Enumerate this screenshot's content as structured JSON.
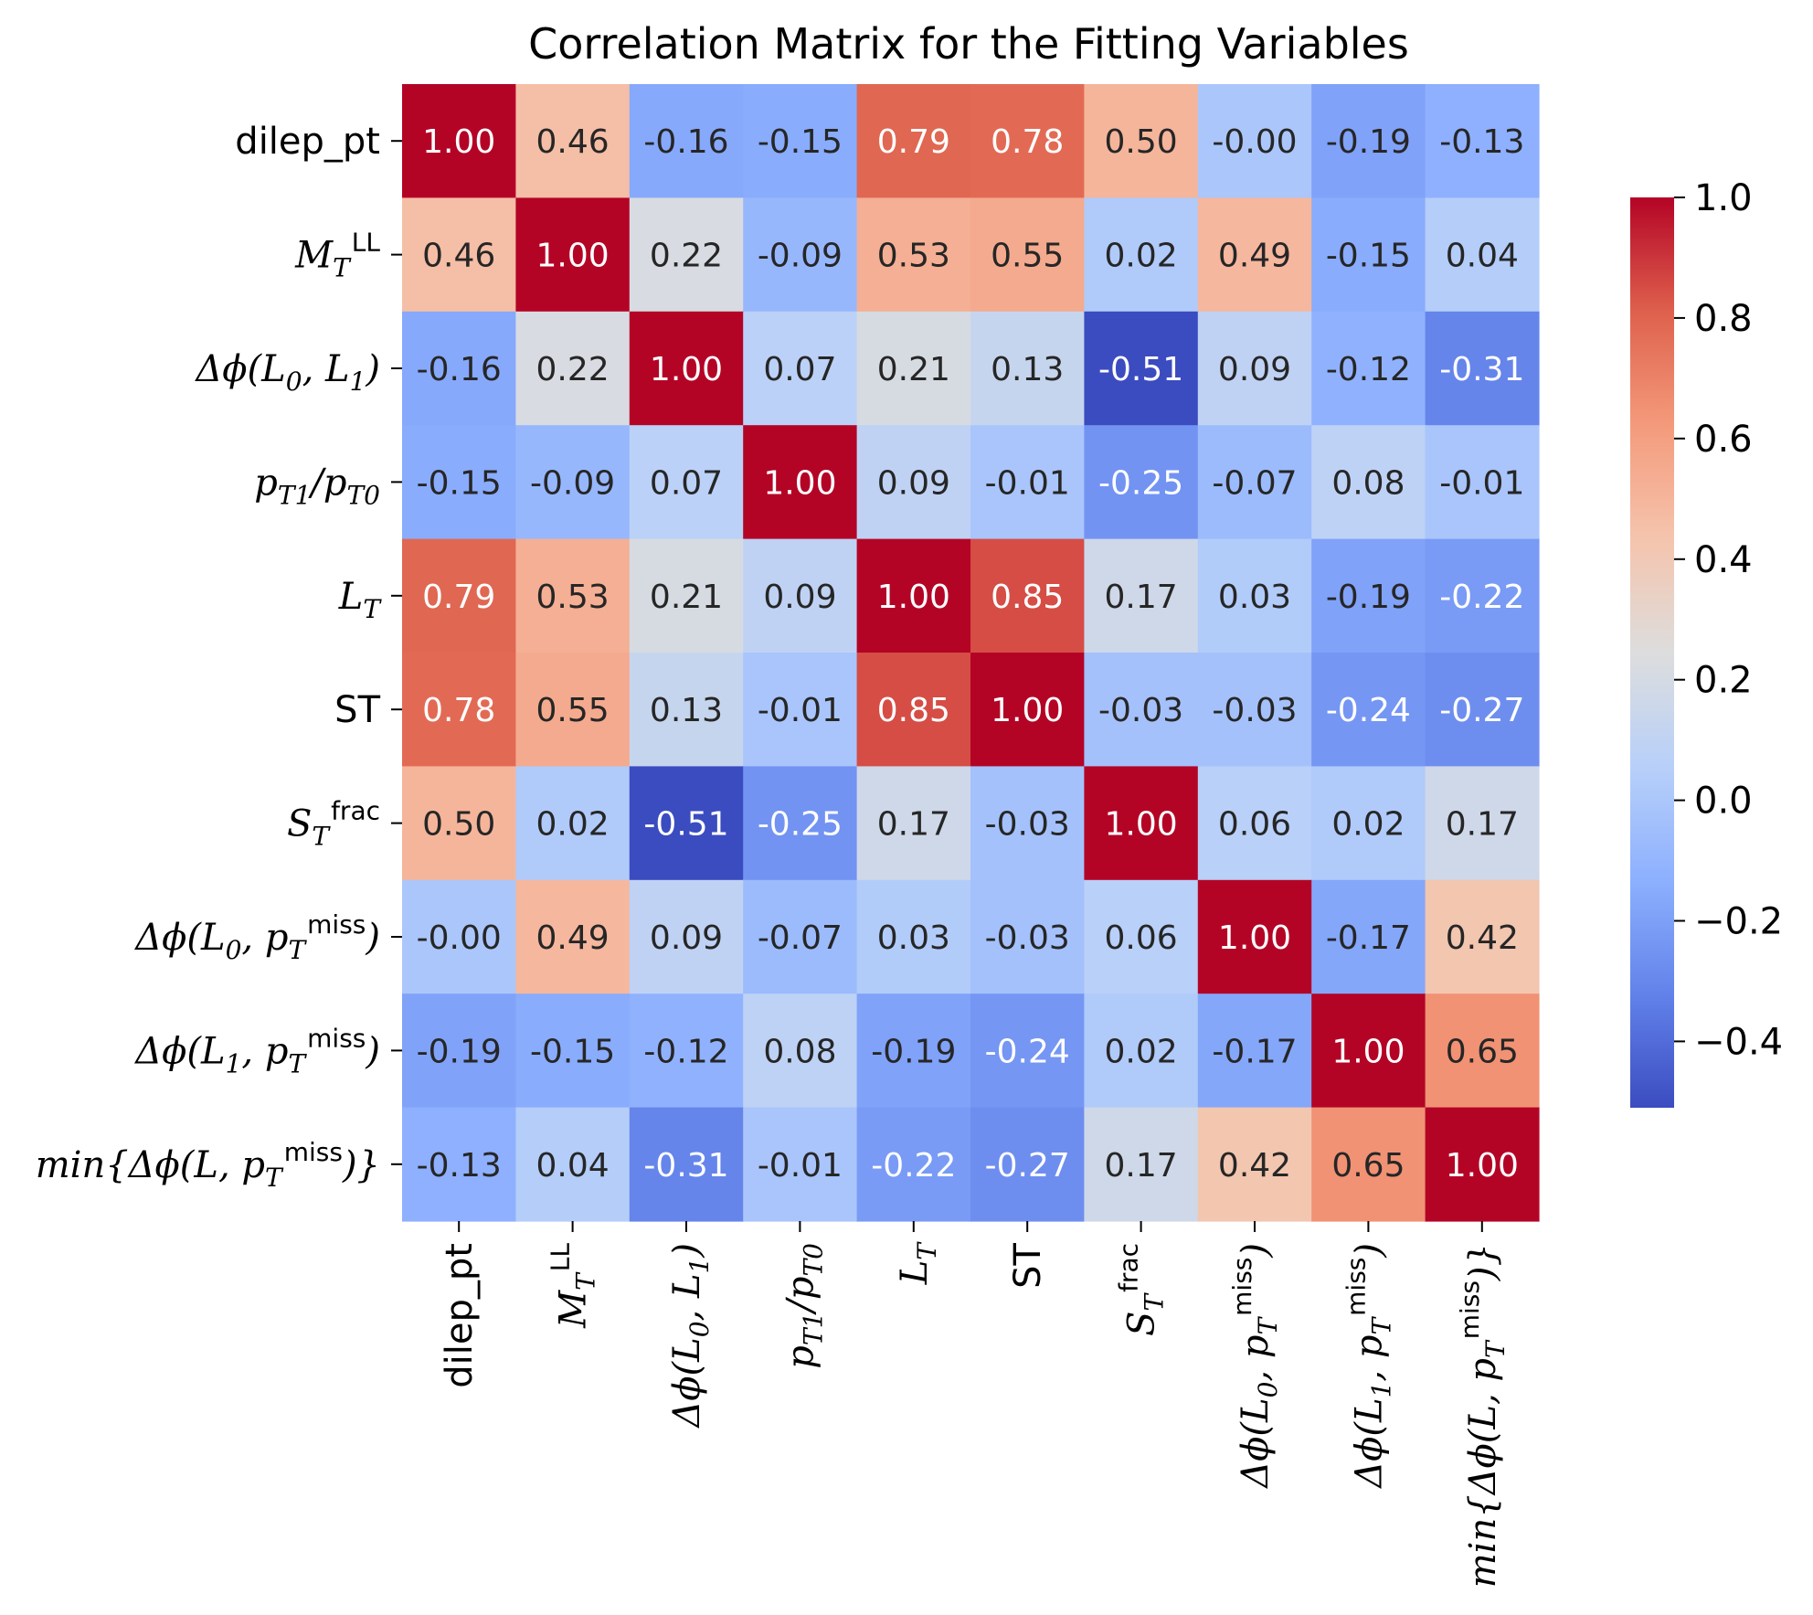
{
  "chart_data": {
    "type": "heatmap",
    "title": "Correlation Matrix for the Fitting Variables",
    "colormap": "coolwarm",
    "vmin": -0.51,
    "vmax": 1.0,
    "colorbar_ticks": [
      "1.0",
      "0.8",
      "0.6",
      "0.4",
      "0.2",
      "0.0",
      "−0.2",
      "−0.4"
    ],
    "colorbar_tick_values": [
      1.0,
      0.8,
      0.6,
      0.4,
      0.2,
      0.0,
      -0.2,
      -0.4
    ],
    "labels": [
      {
        "text": "dilep_pt",
        "math": false
      },
      {
        "text": "M_T^LL",
        "math": true
      },
      {
        "text": "Δϕ(L_0, L_1)",
        "math": true
      },
      {
        "text": "p_T1/p_T0",
        "math": true
      },
      {
        "text": "L_T",
        "math": true
      },
      {
        "text": "ST",
        "math": false
      },
      {
        "text": "S_T^frac",
        "math": true
      },
      {
        "text": "Δϕ(L_0, p_T^miss)",
        "math": true
      },
      {
        "text": "Δϕ(L_1, p_T^miss)",
        "math": true
      },
      {
        "text": "min{Δϕ(L, p_T^miss)}",
        "math": true
      }
    ],
    "matrix": [
      [
        "1.00",
        "0.46",
        "-0.16",
        "-0.15",
        "0.79",
        "0.78",
        "0.50",
        "-0.00",
        "-0.19",
        "-0.13"
      ],
      [
        "0.46",
        "1.00",
        "0.22",
        "-0.09",
        "0.53",
        "0.55",
        "0.02",
        "0.49",
        "-0.15",
        "0.04"
      ],
      [
        "-0.16",
        "0.22",
        "1.00",
        "0.07",
        "0.21",
        "0.13",
        "-0.51",
        "0.09",
        "-0.12",
        "-0.31"
      ],
      [
        "-0.15",
        "-0.09",
        "0.07",
        "1.00",
        "0.09",
        "-0.01",
        "-0.25",
        "-0.07",
        "0.08",
        "-0.01"
      ],
      [
        "0.79",
        "0.53",
        "0.21",
        "0.09",
        "1.00",
        "0.85",
        "0.17",
        "0.03",
        "-0.19",
        "-0.22"
      ],
      [
        "0.78",
        "0.55",
        "0.13",
        "-0.01",
        "0.85",
        "1.00",
        "-0.03",
        "-0.03",
        "-0.24",
        "-0.27"
      ],
      [
        "0.50",
        "0.02",
        "-0.51",
        "-0.25",
        "0.17",
        "-0.03",
        "1.00",
        "0.06",
        "0.02",
        "0.17"
      ],
      [
        "-0.00",
        "0.49",
        "0.09",
        "-0.07",
        "0.03",
        "-0.03",
        "0.06",
        "1.00",
        "-0.17",
        "0.42"
      ],
      [
        "-0.19",
        "-0.15",
        "-0.12",
        "0.08",
        "-0.19",
        "-0.24",
        "0.02",
        "-0.17",
        "1.00",
        "0.65"
      ],
      [
        "-0.13",
        "0.04",
        "-0.31",
        "-0.01",
        "-0.22",
        "-0.27",
        "0.17",
        "0.42",
        "0.65",
        "1.00"
      ]
    ]
  }
}
